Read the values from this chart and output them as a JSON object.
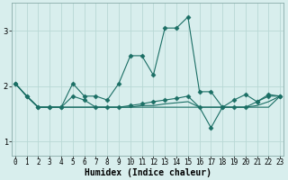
{
  "title": "",
  "xlabel": "Humidex (Indice chaleur)",
  "ylabel": "",
  "background_color": "#d8eeed",
  "grid_color": "#b8d8d5",
  "line_color": "#1a6e64",
  "x_ticks": [
    0,
    1,
    2,
    3,
    4,
    5,
    6,
    7,
    8,
    9,
    10,
    11,
    12,
    13,
    14,
    15,
    16,
    17,
    18,
    19,
    20,
    21,
    22,
    23
  ],
  "ylim": [
    0.75,
    3.5
  ],
  "yticks": [
    1,
    2,
    3
  ],
  "xlim": [
    -0.3,
    23.3
  ],
  "series": [
    [
      2.05,
      1.82,
      1.62,
      1.62,
      1.62,
      2.05,
      1.82,
      1.82,
      1.75,
      2.05,
      2.55,
      2.55,
      2.2,
      3.05,
      3.05,
      3.25,
      1.9,
      1.9,
      1.62,
      1.75,
      1.85,
      1.72,
      1.85,
      1.82
    ],
    [
      2.05,
      1.82,
      1.62,
      1.62,
      1.62,
      1.82,
      1.75,
      1.62,
      1.62,
      1.62,
      1.65,
      1.68,
      1.72,
      1.75,
      1.78,
      1.82,
      1.62,
      1.25,
      1.62,
      1.62,
      1.62,
      1.72,
      1.82,
      1.82
    ],
    [
      2.05,
      1.82,
      1.62,
      1.62,
      1.62,
      1.62,
      1.62,
      1.62,
      1.62,
      1.62,
      1.62,
      1.65,
      1.65,
      1.68,
      1.7,
      1.72,
      1.62,
      1.62,
      1.62,
      1.62,
      1.62,
      1.65,
      1.72,
      1.82
    ],
    [
      2.05,
      1.82,
      1.62,
      1.62,
      1.62,
      1.62,
      1.62,
      1.62,
      1.62,
      1.62,
      1.62,
      1.62,
      1.62,
      1.62,
      1.62,
      1.62,
      1.62,
      1.62,
      1.62,
      1.62,
      1.62,
      1.62,
      1.62,
      1.82
    ]
  ],
  "marker_series": [
    0,
    1
  ],
  "marker": "D",
  "marker_size": 2.5,
  "tick_fontsize": 5.5,
  "xlabel_fontsize": 7
}
